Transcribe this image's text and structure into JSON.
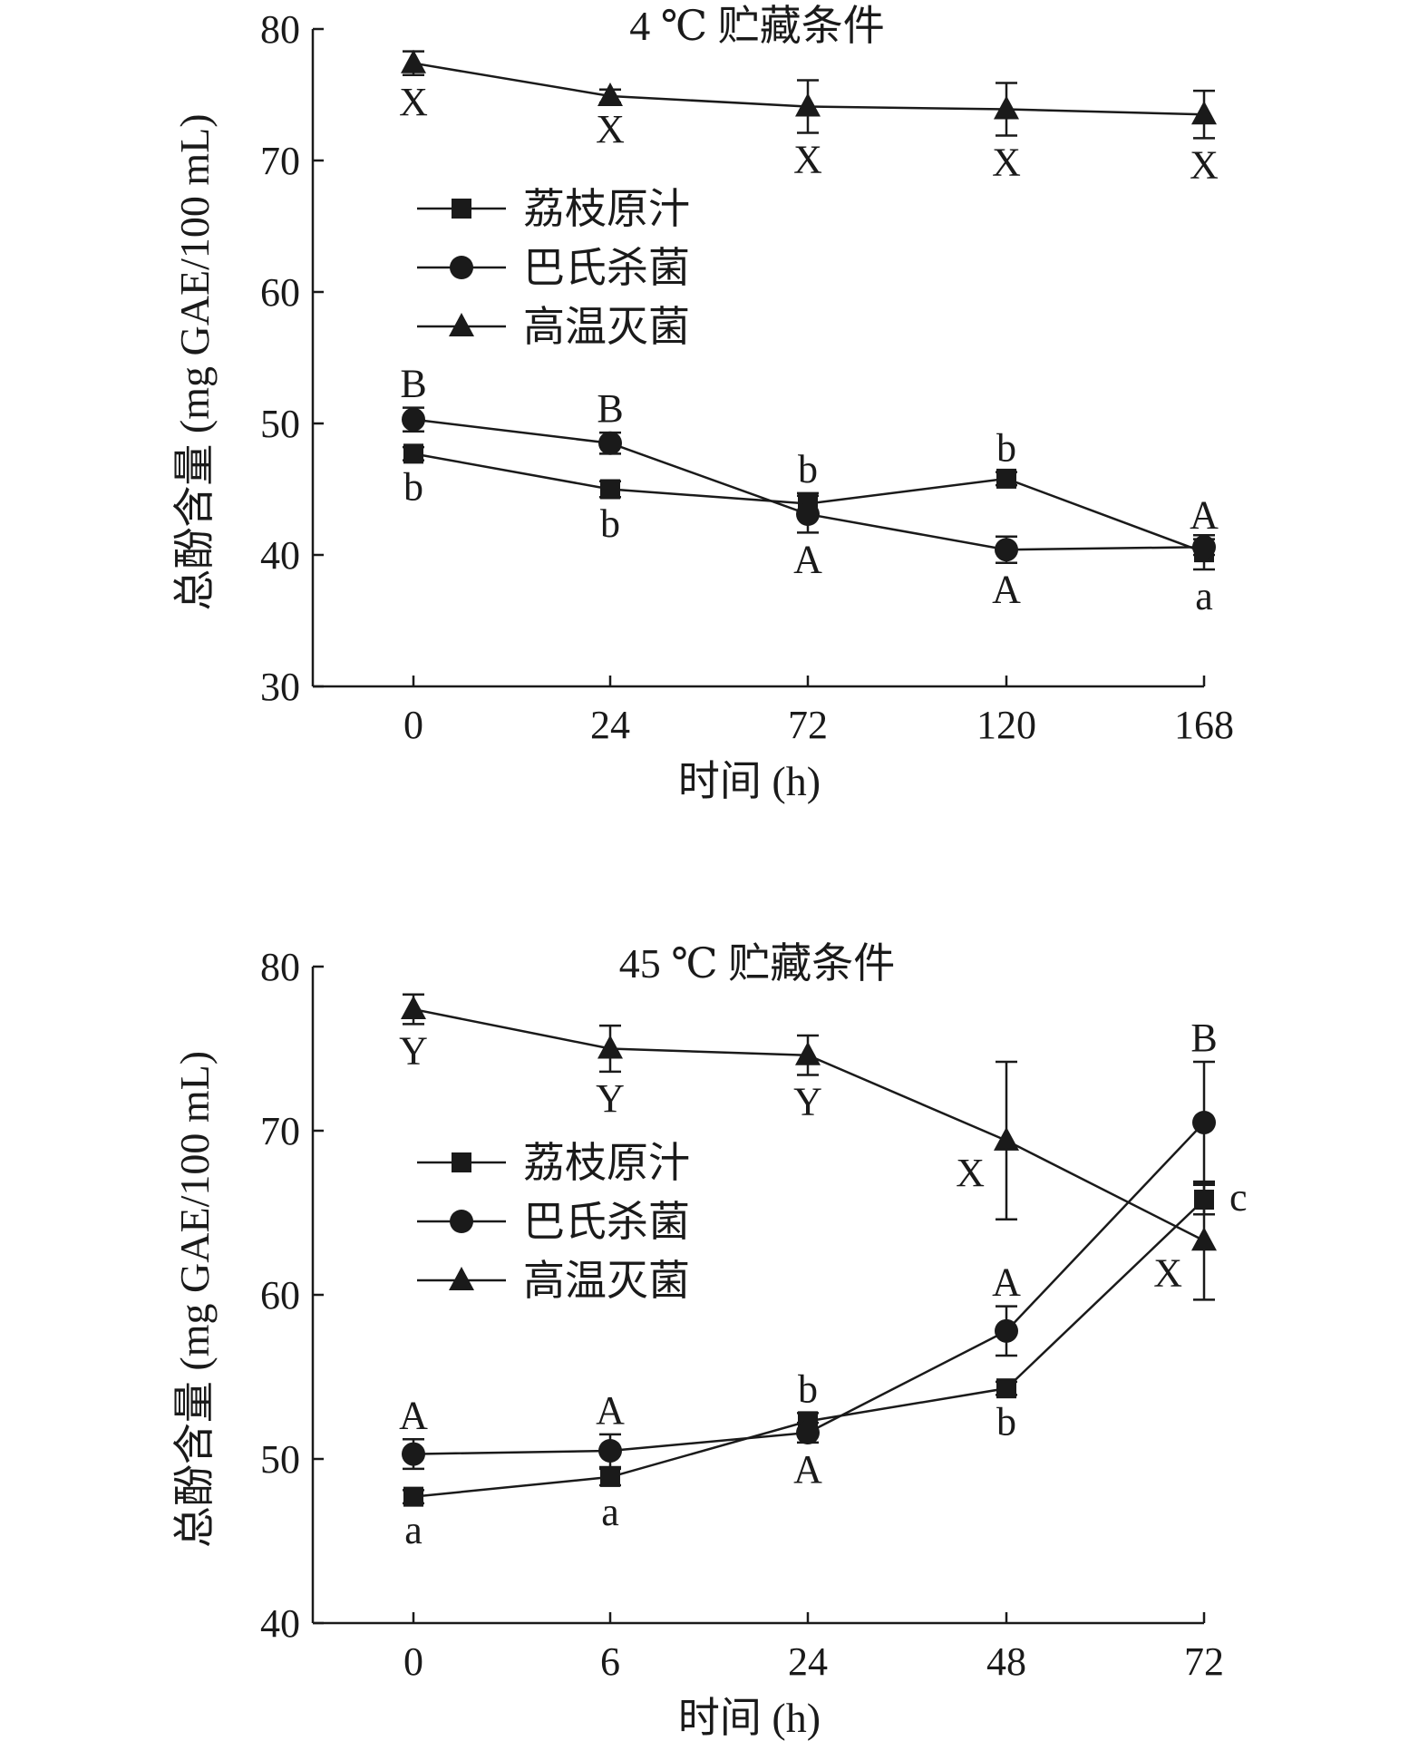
{
  "chart_data": [
    {
      "type": "line",
      "title": "4 ℃ 贮藏条件",
      "xlabel": "时间 (h)",
      "ylabel": "总酚含量 (mg GAE/100 mL)",
      "categories": [
        "0",
        "24",
        "72",
        "120",
        "168"
      ],
      "ylim": [
        30,
        80
      ],
      "yticks": [
        "30",
        "40",
        "50",
        "60",
        "70",
        "80"
      ],
      "grid": false,
      "legend_position": "upper-left",
      "series": [
        {
          "name": "荔枝原汁",
          "marker": "square",
          "values": [
            47.7,
            45.0,
            43.9,
            45.8,
            40.2
          ],
          "errors": [
            0.5,
            0.6,
            0.8,
            0.5,
            1.3
          ],
          "labels": [
            "b",
            "b",
            "b",
            "b",
            "a"
          ],
          "label_pos": [
            "below",
            "below",
            "above",
            "above",
            "below"
          ]
        },
        {
          "name": "巴氏杀菌",
          "marker": "circle",
          "values": [
            50.3,
            48.5,
            43.1,
            40.4,
            40.6
          ],
          "errors": [
            0.9,
            0.8,
            1.4,
            1.0,
            0.6
          ],
          "labels": [
            "B",
            "B",
            "A",
            "A",
            "A"
          ],
          "label_pos": [
            "above",
            "above",
            "below",
            "below",
            "above"
          ]
        },
        {
          "name": "高温灭菌",
          "marker": "triangle",
          "values": [
            77.4,
            74.9,
            74.1,
            73.9,
            73.5
          ],
          "errors": [
            0.9,
            0.5,
            2.0,
            2.0,
            1.8
          ],
          "labels": [
            "X",
            "X",
            "X",
            "X",
            "X"
          ],
          "label_pos": [
            "below",
            "below",
            "below",
            "below",
            "below"
          ]
        }
      ]
    },
    {
      "type": "line",
      "title": "45 ℃ 贮藏条件",
      "xlabel": "时间 (h)",
      "ylabel": "总酚含量 (mg GAE/100 mL)",
      "categories": [
        "0",
        "6",
        "24",
        "48",
        "72"
      ],
      "ylim": [
        40,
        80
      ],
      "yticks": [
        "40",
        "50",
        "60",
        "70",
        "80"
      ],
      "grid": false,
      "legend_position": "middle-left",
      "series": [
        {
          "name": "荔枝原汁",
          "marker": "square",
          "values": [
            47.7,
            48.9,
            52.3,
            54.3,
            65.8
          ],
          "errors": [
            0.4,
            0.5,
            0.5,
            0.4,
            0.9
          ],
          "labels": [
            "a",
            "a",
            "b",
            "b",
            "c"
          ],
          "label_pos": [
            "below",
            "below",
            "above",
            "below",
            "right"
          ]
        },
        {
          "name": "巴氏杀菌",
          "marker": "circle",
          "values": [
            50.3,
            50.5,
            51.6,
            57.8,
            70.5
          ],
          "errors": [
            0.9,
            1.0,
            0.6,
            1.5,
            3.7
          ],
          "labels": [
            "A",
            "A",
            "A",
            "A",
            "B"
          ],
          "label_pos": [
            "above",
            "above",
            "below",
            "above",
            "above"
          ]
        },
        {
          "name": "高温灭菌",
          "marker": "triangle",
          "values": [
            77.4,
            75.0,
            74.6,
            69.4,
            63.3
          ],
          "errors": [
            0.9,
            1.4,
            1.2,
            4.8,
            3.6
          ],
          "labels": [
            "Y",
            "Y",
            "Y",
            "X",
            "X"
          ],
          "label_pos": [
            "below",
            "below",
            "below",
            "left",
            "left"
          ]
        }
      ]
    }
  ]
}
